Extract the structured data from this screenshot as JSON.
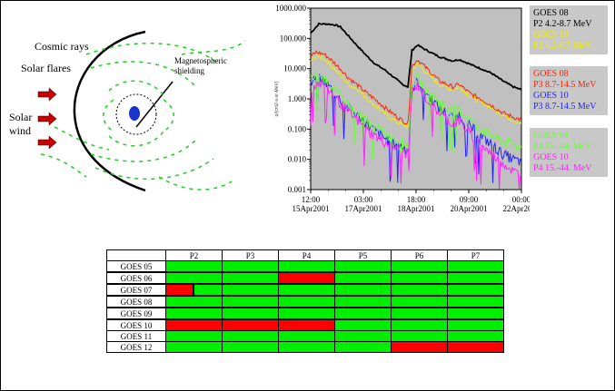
{
  "diagram": {
    "labels": {
      "cosmic_rays": "Cosmic rays",
      "solar_flares": "Solar flares",
      "solar_wind_1": "Solar",
      "solar_wind_2": "wind",
      "shielding_1": "Magnetospheric",
      "shielding_2": "shielding"
    },
    "colors": {
      "arrows": "#cc0000",
      "field_lines": "#22cc22",
      "earth": "#1a33cc"
    }
  },
  "chart_data": {
    "type": "line",
    "y_scale": "log",
    "ylim": [
      0.001,
      1000
    ],
    "y_ticks": [
      "1000.000",
      "100.000",
      "10.000",
      "1.000",
      "0.100",
      "0.010",
      "0.001"
    ],
    "y_tick_values": [
      1000,
      100,
      10,
      1,
      0.1,
      0.01,
      0.001
    ],
    "x_ticks": [
      {
        "time": "12:00",
        "date": "15Apr2001"
      },
      {
        "time": "03:00",
        "date": "17Apr2001"
      },
      {
        "time": "18:00",
        "date": "18Apr2001"
      },
      {
        "time": "09:00",
        "date": "20Apr2001"
      },
      {
        "time": "00:00",
        "date": "22Apr2001"
      }
    ],
    "x_tick_hours": [
      0,
      39,
      78,
      117,
      156
    ],
    "xlim_hours": [
      0,
      156
    ],
    "ylabel": "p/(cm2-s-sr-MeV)",
    "background": "#c0c0c0",
    "series": [
      {
        "name": "GOES 08 P2 4.2-8.7 MeV",
        "color": "#000000",
        "points": [
          [
            0,
            150
          ],
          [
            6,
            300
          ],
          [
            12,
            300
          ],
          [
            18,
            280
          ],
          [
            22,
            240
          ],
          [
            28,
            120
          ],
          [
            34,
            60
          ],
          [
            42,
            25
          ],
          [
            48,
            14
          ],
          [
            55,
            9
          ],
          [
            62,
            5
          ],
          [
            68,
            3
          ],
          [
            72,
            2.5
          ],
          [
            75,
            40
          ],
          [
            79,
            60
          ],
          [
            86,
            40
          ],
          [
            95,
            25
          ],
          [
            105,
            18
          ],
          [
            110,
            20
          ],
          [
            118,
            14
          ],
          [
            126,
            10
          ],
          [
            134,
            7
          ],
          [
            142,
            4
          ],
          [
            150,
            2.5
          ],
          [
            156,
            2
          ]
        ]
      },
      {
        "name": "GOES 10 P2 4.2-8.7 MeV",
        "color": "#eeee00",
        "points": [
          [
            0,
            18
          ],
          [
            4,
            25
          ],
          [
            10,
            22
          ],
          [
            16,
            12
          ],
          [
            22,
            6
          ],
          [
            28,
            3
          ],
          [
            34,
            2.2
          ],
          [
            42,
            1
          ],
          [
            50,
            0.5
          ],
          [
            58,
            0.25
          ],
          [
            66,
            0.15
          ],
          [
            72,
            0.12
          ],
          [
            75,
            8
          ],
          [
            79,
            15
          ],
          [
            86,
            7
          ],
          [
            95,
            3
          ],
          [
            105,
            2
          ],
          [
            110,
            2.5
          ],
          [
            118,
            1.2
          ],
          [
            126,
            0.8
          ],
          [
            134,
            0.5
          ],
          [
            142,
            0.3
          ],
          [
            150,
            0.2
          ],
          [
            156,
            0.15
          ]
        ]
      },
      {
        "name": "GOES 08 P3 8.7-14.5 MeV",
        "color": "#ff2200",
        "points": [
          [
            0,
            25
          ],
          [
            4,
            35
          ],
          [
            10,
            30
          ],
          [
            16,
            18
          ],
          [
            22,
            10
          ],
          [
            28,
            5
          ],
          [
            34,
            3
          ],
          [
            42,
            1.5
          ],
          [
            50,
            0.8
          ],
          [
            58,
            0.4
          ],
          [
            66,
            0.22
          ],
          [
            72,
            0.15
          ],
          [
            75,
            12
          ],
          [
            79,
            20
          ],
          [
            86,
            10
          ],
          [
            95,
            4
          ],
          [
            105,
            2.5
          ],
          [
            110,
            3
          ],
          [
            118,
            1.5
          ],
          [
            126,
            1
          ],
          [
            134,
            0.6
          ],
          [
            142,
            0.35
          ],
          [
            150,
            0.25
          ],
          [
            156,
            0.2
          ]
        ]
      },
      {
        "name": "GOES 10 P3 8.7-14.5 MeV",
        "color": "#2222ff",
        "points": [
          [
            0,
            3
          ],
          [
            4,
            5
          ],
          [
            10,
            4
          ],
          [
            16,
            2
          ],
          [
            22,
            0.9
          ],
          [
            28,
            0.5
          ],
          [
            34,
            0.3
          ],
          [
            42,
            0.15
          ],
          [
            50,
            0.07
          ],
          [
            58,
            0.04
          ],
          [
            66,
            0.03
          ],
          [
            72,
            0.02
          ],
          [
            75,
            2
          ],
          [
            79,
            4
          ],
          [
            86,
            1.5
          ],
          [
            95,
            0.5
          ],
          [
            105,
            0.25
          ],
          [
            110,
            0.3
          ],
          [
            118,
            0.12
          ],
          [
            126,
            0.06
          ],
          [
            134,
            0.03
          ],
          [
            142,
            0.015
          ],
          [
            150,
            0.01
          ],
          [
            156,
            0.008
          ]
        ]
      },
      {
        "name": "GOES 08 P4 15.-44. MeV",
        "color": "#66ff33",
        "points": [
          [
            0,
            4
          ],
          [
            4,
            6
          ],
          [
            10,
            5
          ],
          [
            16,
            2.5
          ],
          [
            22,
            1.2
          ],
          [
            28,
            0.6
          ],
          [
            34,
            0.35
          ],
          [
            42,
            0.18
          ],
          [
            50,
            0.1
          ],
          [
            58,
            0.06
          ],
          [
            66,
            0.04
          ],
          [
            72,
            0.03
          ],
          [
            75,
            3
          ],
          [
            79,
            5
          ],
          [
            86,
            2
          ],
          [
            95,
            0.8
          ],
          [
            105,
            0.4
          ],
          [
            110,
            0.45
          ],
          [
            118,
            0.2
          ],
          [
            126,
            0.1
          ],
          [
            134,
            0.06
          ],
          [
            142,
            0.04
          ],
          [
            150,
            0.03
          ],
          [
            156,
            0.025
          ]
        ]
      },
      {
        "name": "GOES 10 P4 15.-44. MeV",
        "color": "#ff22ff",
        "points": [
          [
            0,
            2
          ],
          [
            4,
            3.5
          ],
          [
            10,
            3
          ],
          [
            16,
            1.5
          ],
          [
            22,
            0.7
          ],
          [
            28,
            0.35
          ],
          [
            34,
            0.2
          ],
          [
            42,
            0.09
          ],
          [
            50,
            0.05
          ],
          [
            58,
            0.03
          ],
          [
            66,
            0.02
          ],
          [
            72,
            0.015
          ],
          [
            75,
            1.5
          ],
          [
            79,
            3
          ],
          [
            86,
            1
          ],
          [
            95,
            0.35
          ],
          [
            105,
            0.15
          ],
          [
            110,
            0.18
          ],
          [
            118,
            0.07
          ],
          [
            126,
            0.03
          ],
          [
            134,
            0.015
          ],
          [
            142,
            0.008
          ],
          [
            150,
            0.004
          ],
          [
            156,
            0.003
          ]
        ]
      }
    ]
  },
  "legend": [
    {
      "bg": "#c8c8c8",
      "lines": [
        {
          "text": "GOES 08",
          "color": "#000000"
        },
        {
          "text": "P2 4.2-8.7 MeV",
          "color": "#000000"
        },
        {
          "text": "GOES 10",
          "color": "#eeee00"
        },
        {
          "text": "P2 4.2-8.7 MeV",
          "color": "#eeee00"
        }
      ]
    },
    {
      "bg": "#c8c8c8",
      "lines": [
        {
          "text": "GOES 08",
          "color": "#ff2200"
        },
        {
          "text": "P3 8.7-14.5 MeV",
          "color": "#ff2200"
        },
        {
          "text": "GOES 10",
          "color": "#2222ff"
        },
        {
          "text": "P3 8.7-14.5 MeV",
          "color": "#2222ff"
        }
      ]
    },
    {
      "bg": "#c8c8c8",
      "lines": [
        {
          "text": "GOES 08",
          "color": "#66ff33"
        },
        {
          "text": "P4 15.-44. MeV",
          "color": "#66ff33"
        },
        {
          "text": "GOES 10",
          "color": "#ff22ff"
        },
        {
          "text": "P4 15.-44. MeV",
          "color": "#ff22ff"
        }
      ]
    }
  ],
  "status_table": {
    "columns": [
      "P2",
      "P3",
      "P4",
      "P5",
      "P6",
      "P7"
    ],
    "colors": {
      "ok": "#00ee00",
      "fail": "#ff0000"
    },
    "rows": [
      {
        "label": "GOES 05",
        "cells": [
          "ok",
          "ok",
          "ok",
          "ok",
          "ok",
          "ok"
        ],
        "thick": true
      },
      {
        "label": "GOES 06",
        "cells": [
          "ok",
          "ok",
          "fail",
          "ok",
          "ok",
          "ok"
        ],
        "thick": true
      },
      {
        "label": "GOES 07",
        "cells": [
          "partial",
          "ok",
          "ok",
          "ok",
          "ok",
          "ok"
        ],
        "thick": true
      },
      {
        "label": "GOES 08",
        "cells": [
          "ok",
          "ok",
          "ok",
          "ok",
          "ok",
          "ok"
        ],
        "thick": true
      },
      {
        "label": "GOES 09",
        "cells": [
          "ok",
          "ok",
          "ok",
          "ok",
          "ok",
          "ok"
        ],
        "thick": true
      },
      {
        "label": "GOES 10",
        "cells": [
          "fail",
          "fail",
          "fail",
          "ok",
          "ok",
          "ok"
        ],
        "thick": false
      },
      {
        "label": "GOES 11",
        "cells": [
          "ok",
          "ok",
          "ok",
          "ok",
          "ok",
          "ok"
        ],
        "thick": false
      },
      {
        "label": "GOES 12",
        "cells": [
          "ok",
          "ok",
          "ok",
          "ok",
          "fail",
          "fail"
        ],
        "thick": false
      }
    ]
  }
}
